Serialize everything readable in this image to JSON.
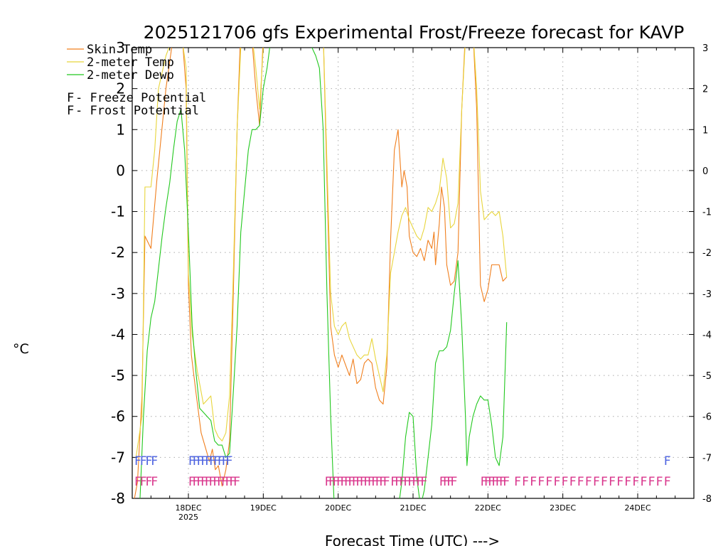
{
  "chart_data": {
    "type": "line",
    "title": "2025121706 gfs Experimental Frost/Freeze forecast for KAVP",
    "xlabel": "Forecast Time (UTC) --->",
    "ylabel": "°C",
    "ylim": [
      -8,
      3
    ],
    "xlim": [
      17.25,
      24.75
    ],
    "yticks": [
      -8,
      -7,
      -6,
      -5,
      -4,
      -3,
      -2,
      -1,
      0,
      1,
      2,
      3
    ],
    "xticks": [
      {
        "x": 18,
        "label": "18DEC",
        "sub": "2025"
      },
      {
        "x": 19,
        "label": "19DEC",
        "sub": ""
      },
      {
        "x": 20,
        "label": "20DEC",
        "sub": ""
      },
      {
        "x": 21,
        "label": "21DEC",
        "sub": ""
      },
      {
        "x": 22,
        "label": "22DEC",
        "sub": ""
      },
      {
        "x": 23,
        "label": "23DEC",
        "sub": ""
      },
      {
        "x": 24,
        "label": "24DEC",
        "sub": ""
      }
    ],
    "grid": true,
    "legend": [
      {
        "label": "Skin Temp",
        "color": "#f07f1e"
      },
      {
        "label": "2-meter Temp",
        "color": "#e8d53c"
      },
      {
        "label": "2-meter Dewp",
        "color": "#22c81e"
      }
    ],
    "marker_legend": [
      {
        "symbol": "F",
        "label": " - Freeze Potential",
        "color": "#d9368c"
      },
      {
        "symbol": "F",
        "label": " - Frost Potential",
        "color": "#4d63e0"
      }
    ],
    "series": [
      {
        "name": "Skin Temp",
        "color": "#f07f1e",
        "points": [
          [
            17.25,
            -8.3
          ],
          [
            17.32,
            -7.6
          ],
          [
            17.38,
            -5.5
          ],
          [
            17.42,
            -1.6
          ],
          [
            17.5,
            -1.9
          ],
          [
            17.58,
            -0.2
          ],
          [
            17.7,
            2.0
          ],
          [
            17.8,
            3.3
          ],
          [
            17.85,
            3.5
          ],
          [
            17.92,
            3.2
          ],
          [
            17.97,
            2.0
          ],
          [
            18.0,
            -2.8
          ],
          [
            18.04,
            -4.5
          ],
          [
            18.1,
            -5.4
          ],
          [
            18.17,
            -6.4
          ],
          [
            18.25,
            -6.9
          ],
          [
            18.28,
            -7.1
          ],
          [
            18.32,
            -6.8
          ],
          [
            18.36,
            -7.3
          ],
          [
            18.4,
            -7.2
          ],
          [
            18.45,
            -7.7
          ],
          [
            18.5,
            -7.3
          ],
          [
            18.55,
            -6.6
          ],
          [
            18.6,
            -3.0
          ],
          [
            18.65,
            1.0
          ],
          [
            18.7,
            3.5
          ],
          [
            18.84,
            3.4
          ],
          [
            18.9,
            2.0
          ],
          [
            18.95,
            1.1
          ],
          [
            19.0,
            3.3
          ],
          [
            19.35,
            3.6
          ],
          [
            19.4,
            3.4
          ],
          [
            19.8,
            3.4
          ],
          [
            19.9,
            -3.8
          ],
          [
            19.95,
            -4.5
          ],
          [
            20.0,
            -4.8
          ],
          [
            20.05,
            -4.5
          ],
          [
            20.15,
            -5.0
          ],
          [
            20.2,
            -4.6
          ],
          [
            20.25,
            -5.2
          ],
          [
            20.3,
            -5.1
          ],
          [
            20.35,
            -4.7
          ],
          [
            20.4,
            -4.6
          ],
          [
            20.45,
            -4.7
          ],
          [
            20.5,
            -5.3
          ],
          [
            20.55,
            -5.6
          ],
          [
            20.6,
            -5.7
          ],
          [
            20.65,
            -4.8
          ],
          [
            20.7,
            -1.7
          ],
          [
            20.75,
            0.5
          ],
          [
            20.8,
            1.0
          ],
          [
            20.85,
            -0.4
          ],
          [
            20.88,
            0.0
          ],
          [
            20.92,
            -0.4
          ],
          [
            20.95,
            -1.6
          ],
          [
            21.0,
            -2.0
          ],
          [
            21.05,
            -2.1
          ],
          [
            21.1,
            -1.9
          ],
          [
            21.15,
            -2.2
          ],
          [
            21.2,
            -1.7
          ],
          [
            21.25,
            -1.9
          ],
          [
            21.28,
            -1.5
          ],
          [
            21.3,
            -2.3
          ],
          [
            21.35,
            -1.3
          ],
          [
            21.38,
            -0.4
          ],
          [
            21.42,
            -0.9
          ],
          [
            21.45,
            -2.3
          ],
          [
            21.5,
            -2.8
          ],
          [
            21.55,
            -2.7
          ],
          [
            21.6,
            -2.0
          ],
          [
            21.65,
            1.5
          ],
          [
            21.7,
            3.4
          ],
          [
            21.8,
            3.4
          ],
          [
            21.85,
            1.5
          ],
          [
            21.9,
            -2.8
          ],
          [
            21.95,
            -3.2
          ],
          [
            22.0,
            -2.9
          ],
          [
            22.05,
            -2.3
          ],
          [
            22.15,
            -2.3
          ],
          [
            22.2,
            -2.7
          ],
          [
            22.25,
            -2.6
          ]
        ]
      },
      {
        "name": "2-meter Temp",
        "color": "#e8d53c",
        "points": [
          [
            17.3,
            -7.0
          ],
          [
            17.38,
            -6.0
          ],
          [
            17.42,
            -0.4
          ],
          [
            17.5,
            -0.4
          ],
          [
            17.55,
            0.5
          ],
          [
            17.6,
            2.0
          ],
          [
            17.7,
            2.8
          ],
          [
            17.8,
            3.3
          ],
          [
            17.9,
            3.4
          ],
          [
            17.97,
            2.5
          ],
          [
            18.0,
            -2.5
          ],
          [
            18.05,
            -4.0
          ],
          [
            18.12,
            -4.9
          ],
          [
            18.2,
            -5.7
          ],
          [
            18.25,
            -5.6
          ],
          [
            18.3,
            -5.5
          ],
          [
            18.35,
            -6.3
          ],
          [
            18.4,
            -6.5
          ],
          [
            18.45,
            -6.6
          ],
          [
            18.5,
            -6.4
          ],
          [
            18.55,
            -5.5
          ],
          [
            18.6,
            -2.5
          ],
          [
            18.65,
            1.0
          ],
          [
            18.7,
            3.0
          ],
          [
            18.85,
            3.3
          ],
          [
            18.9,
            2.5
          ],
          [
            18.95,
            1.5
          ],
          [
            19.0,
            3.0
          ],
          [
            19.35,
            3.6
          ],
          [
            19.4,
            3.4
          ],
          [
            19.8,
            3.4
          ],
          [
            19.9,
            -3.0
          ],
          [
            19.95,
            -3.8
          ],
          [
            20.0,
            -4.0
          ],
          [
            20.05,
            -3.8
          ],
          [
            20.1,
            -3.7
          ],
          [
            20.15,
            -4.1
          ],
          [
            20.2,
            -4.3
          ],
          [
            20.25,
            -4.5
          ],
          [
            20.3,
            -4.6
          ],
          [
            20.35,
            -4.5
          ],
          [
            20.4,
            -4.5
          ],
          [
            20.45,
            -4.1
          ],
          [
            20.5,
            -4.6
          ],
          [
            20.55,
            -5.0
          ],
          [
            20.6,
            -5.4
          ],
          [
            20.65,
            -4.5
          ],
          [
            20.7,
            -2.5
          ],
          [
            20.75,
            -2.0
          ],
          [
            20.8,
            -1.5
          ],
          [
            20.85,
            -1.1
          ],
          [
            20.9,
            -0.9
          ],
          [
            20.95,
            -1.2
          ],
          [
            21.0,
            -1.4
          ],
          [
            21.05,
            -1.6
          ],
          [
            21.1,
            -1.7
          ],
          [
            21.15,
            -1.4
          ],
          [
            21.2,
            -0.9
          ],
          [
            21.25,
            -1.0
          ],
          [
            21.3,
            -0.8
          ],
          [
            21.35,
            -0.5
          ],
          [
            21.4,
            0.3
          ],
          [
            21.45,
            -0.2
          ],
          [
            21.5,
            -1.4
          ],
          [
            21.55,
            -1.3
          ],
          [
            21.6,
            -0.8
          ],
          [
            21.65,
            1.5
          ],
          [
            21.7,
            3.2
          ],
          [
            21.8,
            3.4
          ],
          [
            21.85,
            2.0
          ],
          [
            21.9,
            -0.5
          ],
          [
            21.95,
            -1.2
          ],
          [
            22.0,
            -1.1
          ],
          [
            22.05,
            -1.0
          ],
          [
            22.1,
            -1.1
          ],
          [
            22.15,
            -1.0
          ],
          [
            22.2,
            -1.6
          ],
          [
            22.25,
            -2.6
          ]
        ]
      },
      {
        "name": "2-meter Dewp",
        "color": "#22c81e",
        "points": [
          [
            17.35,
            -8.2
          ],
          [
            17.4,
            -6.0
          ],
          [
            17.45,
            -4.4
          ],
          [
            17.5,
            -3.6
          ],
          [
            17.55,
            -3.2
          ],
          [
            17.6,
            -2.4
          ],
          [
            17.65,
            -1.6
          ],
          [
            17.7,
            -0.9
          ],
          [
            17.75,
            -0.3
          ],
          [
            17.8,
            0.5
          ],
          [
            17.85,
            1.2
          ],
          [
            17.9,
            1.5
          ],
          [
            17.95,
            0.5
          ],
          [
            18.0,
            -1.5
          ],
          [
            18.05,
            -3.8
          ],
          [
            18.1,
            -4.9
          ],
          [
            18.15,
            -5.8
          ],
          [
            18.2,
            -5.9
          ],
          [
            18.25,
            -6.0
          ],
          [
            18.3,
            -6.1
          ],
          [
            18.35,
            -6.6
          ],
          [
            18.4,
            -6.7
          ],
          [
            18.45,
            -6.7
          ],
          [
            18.5,
            -7.0
          ],
          [
            18.55,
            -6.9
          ],
          [
            18.6,
            -5.4
          ],
          [
            18.65,
            -3.8
          ],
          [
            18.7,
            -1.5
          ],
          [
            18.75,
            -0.5
          ],
          [
            18.8,
            0.5
          ],
          [
            18.85,
            1.0
          ],
          [
            18.9,
            1.0
          ],
          [
            18.95,
            1.1
          ],
          [
            19.0,
            2.0
          ],
          [
            19.05,
            2.5
          ],
          [
            19.1,
            3.2
          ],
          [
            19.15,
            3.6
          ],
          [
            19.6,
            3.6
          ],
          [
            19.65,
            3.0
          ],
          [
            19.7,
            2.8
          ],
          [
            19.75,
            2.5
          ],
          [
            19.8,
            1.0
          ],
          [
            19.85,
            -3.0
          ],
          [
            19.9,
            -6.0
          ],
          [
            19.95,
            -8.3
          ],
          [
            20.8,
            -8.3
          ],
          [
            20.85,
            -7.6
          ],
          [
            20.9,
            -6.5
          ],
          [
            20.95,
            -5.9
          ],
          [
            21.0,
            -6.0
          ],
          [
            21.05,
            -7.5
          ],
          [
            21.1,
            -8.2
          ],
          [
            21.15,
            -7.8
          ],
          [
            21.2,
            -7.0
          ],
          [
            21.25,
            -6.2
          ],
          [
            21.3,
            -4.7
          ],
          [
            21.35,
            -4.4
          ],
          [
            21.4,
            -4.4
          ],
          [
            21.45,
            -4.3
          ],
          [
            21.5,
            -3.9
          ],
          [
            21.55,
            -3.0
          ],
          [
            21.6,
            -2.2
          ],
          [
            21.65,
            -3.8
          ],
          [
            21.7,
            -6.0
          ],
          [
            21.72,
            -7.2
          ],
          [
            21.75,
            -6.5
          ],
          [
            21.8,
            -6.0
          ],
          [
            21.85,
            -5.7
          ],
          [
            21.9,
            -5.5
          ],
          [
            21.95,
            -5.6
          ],
          [
            22.0,
            -5.6
          ],
          [
            22.05,
            -6.2
          ],
          [
            22.1,
            -7.0
          ],
          [
            22.15,
            -7.2
          ],
          [
            22.2,
            -6.5
          ],
          [
            22.25,
            -3.7
          ]
        ]
      }
    ],
    "markers": [
      {
        "symbol": "F",
        "color": "#4d63e0",
        "y": -7.05,
        "x_start": 17.28,
        "x_end": 17.5,
        "count": 4
      },
      {
        "symbol": "F",
        "color": "#4d63e0",
        "y": -7.05,
        "x_start": 18.0,
        "x_end": 18.5,
        "count": 10
      },
      {
        "symbol": "F",
        "color": "#4d63e0",
        "y": -7.05,
        "x_start": 24.35,
        "x_end": 24.35,
        "count": 1
      },
      {
        "symbol": "F",
        "color": "#d9368c",
        "y": -7.55,
        "x_start": 17.28,
        "x_end": 17.5,
        "count": 4
      },
      {
        "symbol": "F",
        "color": "#d9368c",
        "y": -7.55,
        "x_start": 18.0,
        "x_end": 18.6,
        "count": 12
      },
      {
        "symbol": "F",
        "color": "#d9368c",
        "y": -7.55,
        "x_start": 19.82,
        "x_end": 20.6,
        "count": 16
      },
      {
        "symbol": "F",
        "color": "#d9368c",
        "y": -7.55,
        "x_start": 20.7,
        "x_end": 21.1,
        "count": 8
      },
      {
        "symbol": "F",
        "color": "#d9368c",
        "y": -7.55,
        "x_start": 21.35,
        "x_end": 21.5,
        "count": 4
      },
      {
        "symbol": "F",
        "color": "#d9368c",
        "y": -7.55,
        "x_start": 21.9,
        "x_end": 22.2,
        "count": 7
      },
      {
        "symbol": "F",
        "color": "#d9368c",
        "y": -7.55,
        "x_start": 22.35,
        "x_end": 24.35,
        "count": 20
      }
    ]
  }
}
